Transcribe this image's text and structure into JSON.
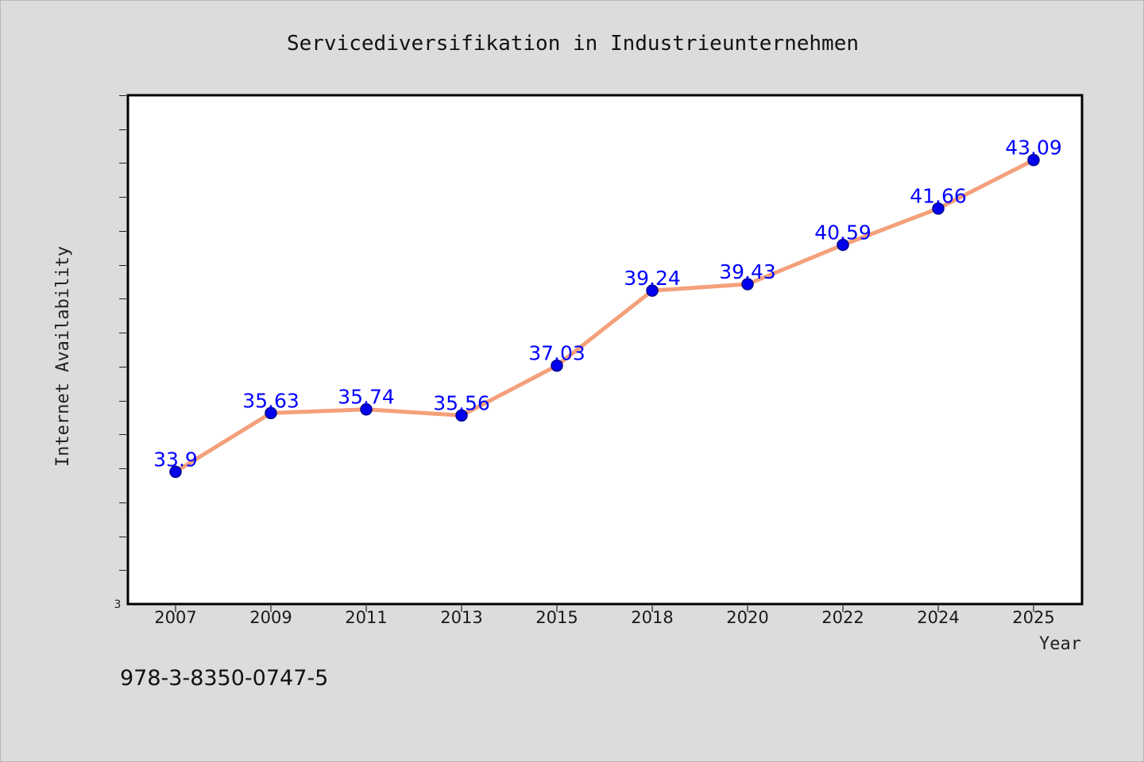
{
  "colors": {
    "page_background": "#dcdcdc",
    "plot_background": "#ffffff",
    "line": "#f4a07a",
    "marker": "#0000ee",
    "marker_edge": "#00008b",
    "data_label": "#0000ff"
  },
  "footer": {
    "isbn": "978-3-8350-0747-5"
  },
  "chart_data": {
    "type": "line",
    "title": "Servicediversifikation in Industrieunternehmen",
    "xlabel": "Year",
    "ylabel": "Internet Availability",
    "categories": [
      "2007",
      "2009",
      "2011",
      "2013",
      "2015",
      "2018",
      "2020",
      "2022",
      "2024",
      "2025"
    ],
    "series": [
      {
        "values": [
          33.9,
          35.63,
          35.74,
          35.56,
          37.03,
          39.24,
          39.43,
          40.59,
          41.66,
          43.09
        ],
        "labels": [
          "33.9",
          "35.63",
          "35.74",
          "35.56",
          "37.03",
          "39.24",
          "39.43",
          "40.59",
          "41.66",
          "43.09"
        ]
      }
    ],
    "ylim": [
      30,
      45
    ],
    "y_visible_tick_label": "3",
    "grid": false,
    "legend": "none"
  }
}
